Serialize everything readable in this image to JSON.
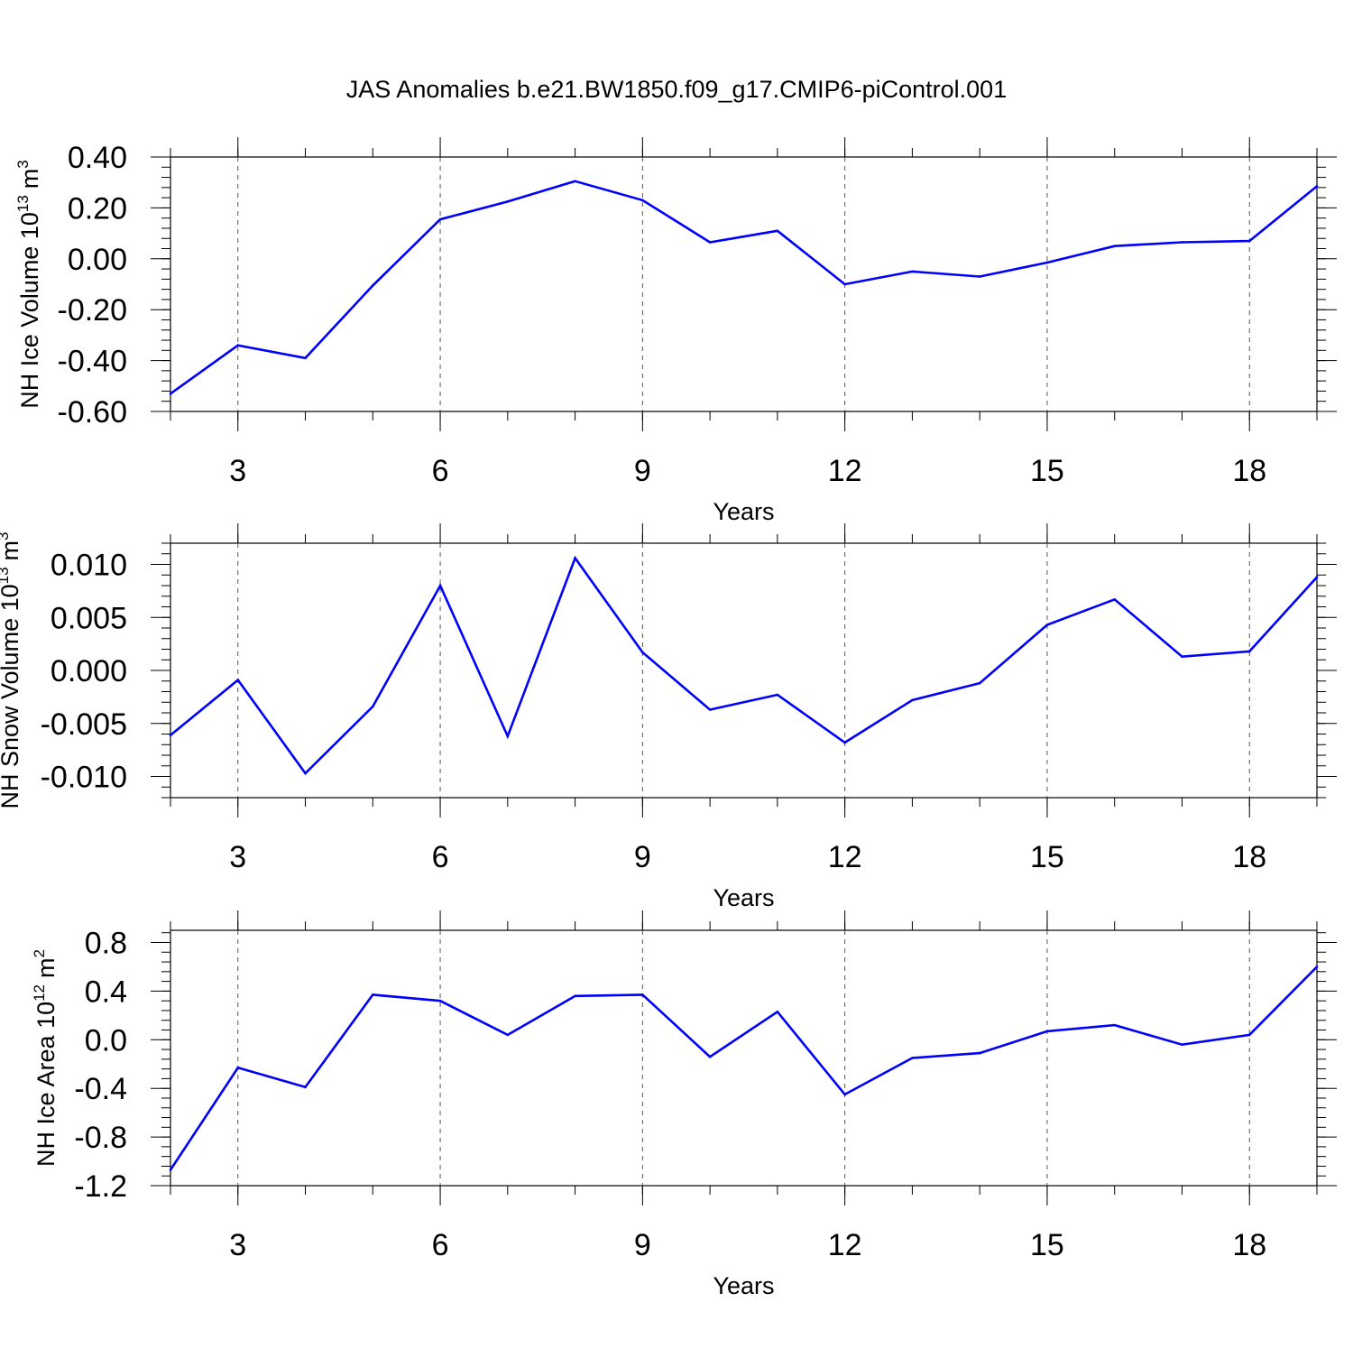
{
  "figure": {
    "title": "JAS Anomalies b.e21.BW1850.f09_g17.CMIP6-piControl.001"
  },
  "chart_data": [
    {
      "type": "line",
      "title": "",
      "xlabel": "Years",
      "ylabel": "NH Ice Volume 10",
      "ylabel_exponent": "13",
      "ylabel_unit": "m",
      "ylabel_unit_exponent": "3",
      "xlim": [
        2,
        19
      ],
      "ylim": [
        -0.6,
        0.4
      ],
      "x_ticks": [
        3,
        6,
        9,
        12,
        15,
        18
      ],
      "x_tick_labels": [
        "3",
        "6",
        "9",
        "12",
        "15",
        "18"
      ],
      "y_ticks": [
        0.4,
        0.2,
        0.0,
        -0.2,
        -0.4,
        -0.6
      ],
      "y_tick_labels": [
        "0.40",
        "0.20",
        "0.00",
        "-0.20",
        "-0.40",
        "-0.60"
      ],
      "series": [
        {
          "name": "NH Ice Volume",
          "color": "#0000ff",
          "x": [
            2,
            3,
            4,
            5,
            6,
            7,
            8,
            9,
            10,
            11,
            12,
            13,
            14,
            15,
            16,
            17,
            18,
            19
          ],
          "values": [
            -0.53,
            -0.34,
            -0.39,
            -0.105,
            0.155,
            0.225,
            0.305,
            0.23,
            0.065,
            0.11,
            -0.1,
            -0.05,
            -0.07,
            -0.015,
            0.05,
            0.065,
            0.07,
            0.285
          ]
        }
      ]
    },
    {
      "type": "line",
      "title": "",
      "xlabel": "Years",
      "ylabel": "NH Snow Volume 10",
      "ylabel_exponent": "13",
      "ylabel_unit": "m",
      "ylabel_unit_exponent": "3",
      "xlim": [
        2,
        19
      ],
      "ylim": [
        -0.012,
        0.012
      ],
      "x_ticks": [
        3,
        6,
        9,
        12,
        15,
        18
      ],
      "x_tick_labels": [
        "3",
        "6",
        "9",
        "12",
        "15",
        "18"
      ],
      "y_ticks": [
        0.01,
        0.005,
        0.0,
        -0.005,
        -0.01
      ],
      "y_tick_labels": [
        "0.010",
        "0.005",
        "0.000",
        "-0.005",
        "-0.010"
      ],
      "series": [
        {
          "name": "NH Snow Volume",
          "color": "#0000ff",
          "x": [
            2,
            3,
            4,
            5,
            6,
            7,
            8,
            9,
            10,
            11,
            12,
            13,
            14,
            15,
            16,
            17,
            18,
            19
          ],
          "values": [
            -0.0061,
            -0.0009,
            -0.0097,
            -0.0034,
            0.008,
            -0.0062,
            0.0106,
            0.0017,
            -0.0037,
            -0.0023,
            -0.0068,
            -0.0028,
            -0.0012,
            0.0043,
            0.0067,
            0.0013,
            0.0018,
            0.0088
          ]
        }
      ]
    },
    {
      "type": "line",
      "title": "",
      "xlabel": "Years",
      "ylabel": "NH Ice Area 10",
      "ylabel_exponent": "12",
      "ylabel_unit": "m",
      "ylabel_unit_exponent": "2",
      "xlim": [
        2,
        19
      ],
      "ylim": [
        -1.2,
        0.9
      ],
      "x_ticks": [
        3,
        6,
        9,
        12,
        15,
        18
      ],
      "x_tick_labels": [
        "3",
        "6",
        "9",
        "12",
        "15",
        "18"
      ],
      "y_ticks": [
        0.8,
        0.4,
        0.0,
        -0.4,
        -0.8,
        -1.2
      ],
      "y_tick_labels": [
        "0.8",
        "0.4",
        "0.0",
        "-0.4",
        "-0.8",
        "-1.2"
      ],
      "series": [
        {
          "name": "NH Ice Area",
          "color": "#0000ff",
          "x": [
            2,
            3,
            4,
            5,
            6,
            7,
            8,
            9,
            10,
            11,
            12,
            13,
            14,
            15,
            16,
            17,
            18,
            19
          ],
          "values": [
            -1.07,
            -0.23,
            -0.39,
            0.37,
            0.32,
            0.04,
            0.36,
            0.37,
            -0.14,
            0.23,
            -0.45,
            -0.15,
            -0.11,
            0.07,
            0.12,
            -0.04,
            0.04,
            0.6
          ]
        }
      ]
    }
  ]
}
